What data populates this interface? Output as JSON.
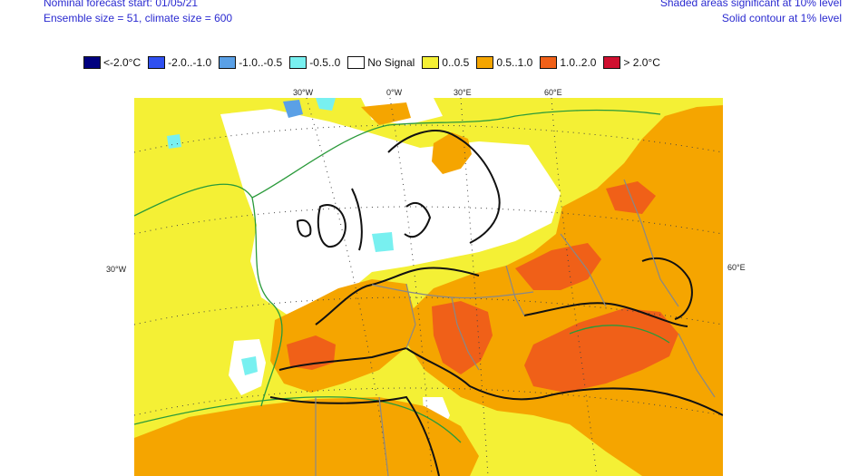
{
  "header": {
    "left_line1": "Nominal forecast start: 01/05/21",
    "left_line2": "Ensemble size = 51, climate size = 600",
    "right_line1": "Shaded areas significant at 10% level",
    "right_line2": "Solid contour at 1% level"
  },
  "legend": [
    {
      "label": "<-2.0°C",
      "color": "#00007f"
    },
    {
      "label": "-2.0..-1.0",
      "color": "#3050f0"
    },
    {
      "label": "-1.0..-0.5",
      "color": "#5aa0e6"
    },
    {
      "label": "-0.5..0",
      "color": "#78f0f0"
    },
    {
      "label": "No Signal",
      "color": "#ffffff"
    },
    {
      "label": "0..0.5",
      "color": "#f4f035"
    },
    {
      "label": "0.5..1.0",
      "color": "#f5a500"
    },
    {
      "label": "1.0..2.0",
      "color": "#f06018"
    },
    {
      "label": "> 2.0°C",
      "color": "#d01030"
    }
  ],
  "map": {
    "ticks_top": [
      "30°W",
      "0°W",
      "30°E",
      "60°E"
    ],
    "tick_left": "30°W",
    "tick_right": "60°E"
  }
}
